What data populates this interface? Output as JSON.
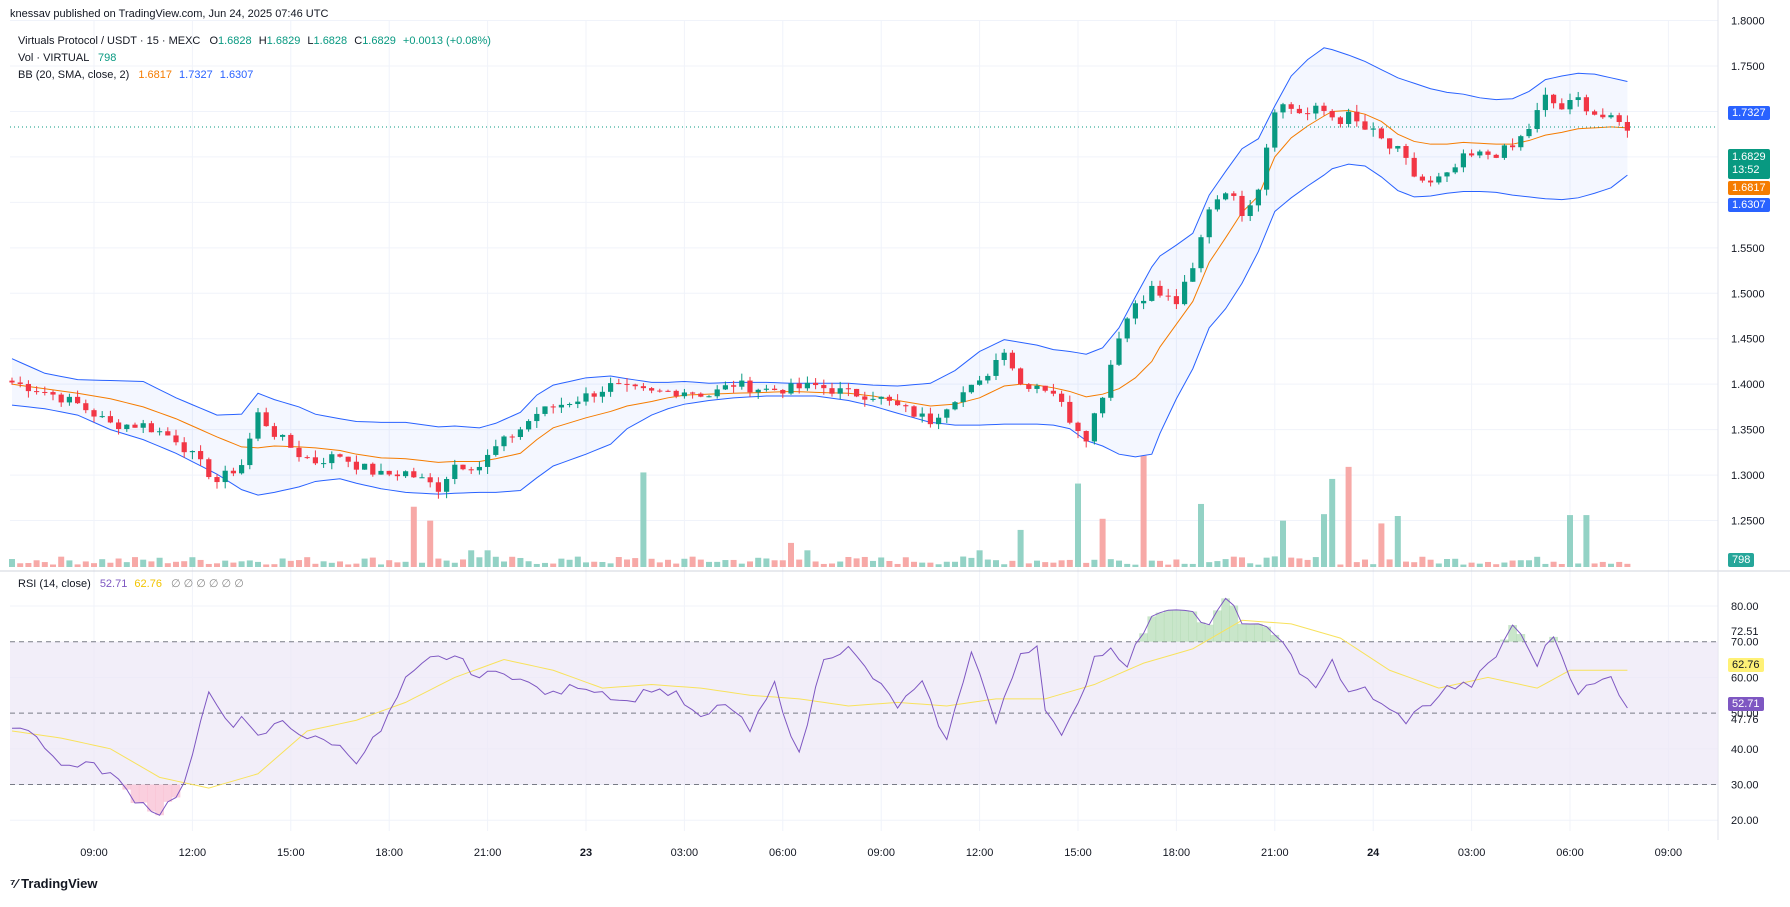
{
  "header": {
    "published": "knessav published on TradingView.com, Jun 24, 2025 07:46 UTC",
    "symbol": "Virtuals Protocol / USDT · 15 · MEXC",
    "ohlc": {
      "o_label": "O",
      "o": "1.6828",
      "h_label": "H",
      "h": "1.6829",
      "l_label": "L",
      "l": "1.6828",
      "c_label": "C",
      "c": "1.6829",
      "change": "+0.0013 (+0.08%)"
    },
    "vol_label": "Vol · VIRTUAL",
    "vol_value": "798",
    "bb_label": "BB (20, SMA, close, 2)",
    "bb_basis": "1.6817",
    "bb_upper": "1.7327",
    "bb_lower": "1.6307",
    "rsi_label": "RSI (14, close)",
    "rsi_value": "52.71",
    "rsi_ma": "62.76",
    "rsi_placeholders": "∅ ∅ ∅ ∅ ∅ ∅"
  },
  "footer": {
    "brand": "TradingView"
  },
  "badges": {
    "upper": "1.7327",
    "price": "1.6829",
    "countdown": "13:52",
    "basis": "1.6817",
    "lower": "1.6307",
    "volume": "798",
    "rsi_ma": "62.76",
    "rsi": "52.71",
    "rsi_upper_level": "72.51",
    "rsi_lower_level": "47.76"
  },
  "colors": {
    "up": "#089981",
    "down": "#f23645",
    "vol_up": "#93d2c5",
    "vol_down": "#f7a9a7",
    "bb_band": "#2962ff",
    "bb_basis": "#f57c00",
    "rsi_line": "#7e57c2",
    "rsi_ma": "#f8e25c",
    "rsi_fill": "#ede7f6"
  },
  "chart_data": [
    {
      "type": "candlestick",
      "title": "Virtuals Protocol / USDT · 15 · MEXC",
      "ylim": [
        1.2,
        1.8
      ],
      "y_ticks": [
        "1.2500",
        "1.3000",
        "1.3500",
        "1.4000",
        "1.4500",
        "1.5000",
        "1.5500",
        "1.6000",
        "1.6500",
        "1.7000",
        "1.7500",
        "1.8000"
      ],
      "x_tick_labels": [
        "09:00",
        "12:00",
        "15:00",
        "18:00",
        "21:00",
        "23",
        "03:00",
        "06:00",
        "09:00",
        "12:00",
        "15:00",
        "18:00",
        "21:00",
        "24",
        "03:00",
        "06:00",
        "09:00"
      ],
      "x_tick_index": [
        10,
        22,
        34,
        46,
        58,
        70,
        82,
        94,
        106,
        118,
        130,
        142,
        154,
        166,
        178,
        190,
        202
      ],
      "close_anchor_index": [
        0,
        4,
        8,
        12,
        16,
        20,
        25,
        28,
        30,
        32,
        35,
        37,
        40,
        42,
        45,
        48,
        52,
        54,
        57,
        59,
        62,
        64,
        66,
        70,
        73,
        75,
        78,
        80,
        82,
        85,
        88,
        92,
        95,
        98,
        102,
        105,
        108,
        112,
        115,
        118,
        121,
        123,
        125,
        127,
        129,
        131,
        133,
        135,
        137,
        139,
        140,
        142,
        144,
        146,
        148,
        150,
        152,
        154,
        156,
        158,
        160,
        161,
        163,
        165,
        167,
        169,
        171,
        173,
        175,
        177,
        179,
        181,
        183,
        185,
        187,
        189,
        191,
        193,
        195,
        197
      ],
      "close_anchor_value": [
        1.402,
        1.392,
        1.378,
        1.356,
        1.355,
        1.34,
        1.293,
        1.312,
        1.367,
        1.346,
        1.323,
        1.315,
        1.322,
        1.311,
        1.3,
        1.303,
        1.286,
        1.312,
        1.31,
        1.33,
        1.351,
        1.368,
        1.375,
        1.387,
        1.398,
        1.394,
        1.39,
        1.392,
        1.393,
        1.388,
        1.4,
        1.394,
        1.395,
        1.398,
        1.39,
        1.388,
        1.375,
        1.36,
        1.386,
        1.4,
        1.44,
        1.4,
        1.4,
        1.392,
        1.362,
        1.343,
        1.39,
        1.455,
        1.49,
        1.505,
        1.498,
        1.49,
        1.525,
        1.595,
        1.615,
        1.59,
        1.62,
        1.708,
        1.704,
        1.697,
        1.7,
        1.695,
        1.692,
        1.68,
        1.667,
        1.653,
        1.63,
        1.618,
        1.628,
        1.648,
        1.652,
        1.654,
        1.66,
        1.682,
        1.715,
        1.703,
        1.713,
        1.698,
        1.69,
        1.683
      ],
      "bb_upper_value": [
        1.428,
        1.412,
        1.405,
        1.404,
        1.403,
        1.385,
        1.366,
        1.367,
        1.39,
        1.383,
        1.375,
        1.367,
        1.362,
        1.359,
        1.358,
        1.358,
        1.353,
        1.354,
        1.352,
        1.357,
        1.369,
        1.388,
        1.399,
        1.407,
        1.409,
        1.406,
        1.402,
        1.402,
        1.403,
        1.401,
        1.402,
        1.402,
        1.401,
        1.401,
        1.401,
        1.399,
        1.398,
        1.401,
        1.415,
        1.436,
        1.449,
        1.446,
        1.443,
        1.438,
        1.436,
        1.433,
        1.44,
        1.462,
        1.496,
        1.529,
        1.541,
        1.553,
        1.566,
        1.608,
        1.634,
        1.659,
        1.67,
        1.706,
        1.739,
        1.757,
        1.77,
        1.768,
        1.762,
        1.755,
        1.746,
        1.737,
        1.731,
        1.725,
        1.721,
        1.719,
        1.715,
        1.713,
        1.714,
        1.722,
        1.735,
        1.739,
        1.742,
        1.741,
        1.737,
        1.733
      ],
      "bb_lower_value": [
        1.377,
        1.373,
        1.366,
        1.35,
        1.339,
        1.324,
        1.301,
        1.284,
        1.278,
        1.281,
        1.287,
        1.293,
        1.296,
        1.291,
        1.285,
        1.281,
        1.279,
        1.28,
        1.281,
        1.281,
        1.283,
        1.297,
        1.31,
        1.323,
        1.334,
        1.351,
        1.366,
        1.373,
        1.378,
        1.382,
        1.385,
        1.387,
        1.387,
        1.387,
        1.382,
        1.376,
        1.368,
        1.358,
        1.355,
        1.355,
        1.356,
        1.356,
        1.356,
        1.355,
        1.351,
        1.338,
        1.332,
        1.323,
        1.32,
        1.323,
        1.346,
        1.384,
        1.417,
        1.462,
        1.483,
        1.511,
        1.546,
        1.59,
        1.605,
        1.618,
        1.63,
        1.637,
        1.642,
        1.64,
        1.628,
        1.613,
        1.606,
        1.607,
        1.61,
        1.612,
        1.612,
        1.611,
        1.608,
        1.606,
        1.604,
        1.603,
        1.605,
        1.61,
        1.616,
        1.63
      ],
      "bb_basis_value": [
        1.4,
        1.395,
        1.39,
        1.384,
        1.375,
        1.362,
        1.342,
        1.331,
        1.33,
        1.332,
        1.331,
        1.33,
        1.327,
        1.323,
        1.319,
        1.318,
        1.314,
        1.315,
        1.315,
        1.318,
        1.324,
        1.339,
        1.352,
        1.363,
        1.37,
        1.376,
        1.381,
        1.385,
        1.388,
        1.389,
        1.39,
        1.391,
        1.392,
        1.391,
        1.39,
        1.387,
        1.382,
        1.376,
        1.378,
        1.385,
        1.398,
        1.4,
        1.399,
        1.396,
        1.392,
        1.386,
        1.389,
        1.395,
        1.407,
        1.425,
        1.441,
        1.466,
        1.491,
        1.534,
        1.561,
        1.589,
        1.607,
        1.65,
        1.671,
        1.684,
        1.695,
        1.7,
        1.701,
        1.697,
        1.689,
        1.675,
        1.667,
        1.664,
        1.664,
        1.666,
        1.665,
        1.664,
        1.664,
        1.668,
        1.674,
        1.677,
        1.681,
        1.682,
        1.683,
        1.682
      ],
      "volume_ylim": [
        0,
        1400
      ],
      "volume_spike_index": [
        49,
        51,
        56,
        58,
        77,
        95,
        97,
        118,
        123,
        130,
        133,
        138,
        145,
        155,
        160,
        161,
        163,
        167,
        169,
        190,
        192
      ],
      "volume_spike_value": [
        650,
        500,
        180,
        180,
        1020,
        260,
        180,
        180,
        400,
        900,
        520,
        1200,
        680,
        500,
        570,
        950,
        1080,
        470,
        550,
        560,
        560
      ],
      "volume_spike_dir": [
        "down",
        "down",
        "up",
        "up",
        "up",
        "down",
        "up",
        "up",
        "up",
        "up",
        "down",
        "down",
        "up",
        "up",
        "up",
        "up",
        "down",
        "down",
        "up",
        "up",
        "up"
      ]
    },
    {
      "type": "line",
      "title": "RSI (14, close)",
      "ylim": [
        15,
        90
      ],
      "y_ticks": [
        "20.00",
        "30.00",
        "40.00",
        "50.00",
        "60.00",
        "70.00",
        "80.00"
      ],
      "levels": [
        70,
        50,
        30
      ],
      "rsi_anchor_index": [
        0,
        3,
        6,
        9,
        12,
        15,
        18,
        21,
        24,
        27,
        28,
        30,
        33,
        36,
        39,
        42,
        45,
        48,
        51,
        54,
        57,
        60,
        63,
        66,
        69,
        72,
        75,
        78,
        81,
        84,
        87,
        90,
        93,
        96,
        99,
        102,
        105,
        108,
        111,
        114,
        117,
        120,
        122,
        123,
        125,
        126,
        128,
        130,
        132,
        134,
        136,
        138,
        140,
        143,
        146,
        148,
        150,
        153,
        155,
        157,
        159,
        161,
        163,
        165,
        167,
        170,
        173,
        175,
        178,
        181,
        183,
        186,
        188,
        189,
        191,
        193,
        195,
        197
      ],
      "rsi_anchor_value": [
        47,
        44,
        35,
        36,
        33,
        26,
        22,
        30,
        55,
        47,
        48,
        43,
        48,
        43,
        42,
        37,
        45,
        59,
        65,
        66,
        60,
        62,
        58,
        55,
        58,
        56,
        53,
        57,
        55,
        48,
        53,
        45,
        58,
        38,
        66,
        68,
        60,
        52,
        58,
        42,
        68,
        47,
        60,
        67,
        69,
        52,
        43,
        52,
        66,
        68,
        64,
        73,
        79,
        80,
        74,
        82,
        76,
        73,
        71,
        60,
        58,
        65,
        55,
        57,
        52,
        48,
        53,
        57,
        58,
        66,
        75,
        64,
        72,
        66,
        56,
        58,
        60,
        52
      ],
      "rsi_ma_anchor_index": [
        0,
        6,
        12,
        18,
        24,
        30,
        36,
        42,
        48,
        54,
        60,
        66,
        72,
        78,
        84,
        90,
        96,
        102,
        108,
        114,
        120,
        126,
        132,
        138,
        144,
        150,
        156,
        162,
        168,
        174,
        180,
        186,
        190,
        194,
        197
      ],
      "rsi_ma_anchor_value": [
        45,
        43,
        40,
        32,
        29,
        33,
        45,
        48,
        53,
        60,
        65,
        62,
        57,
        58,
        57,
        55,
        54,
        52,
        53,
        52,
        54,
        54,
        58,
        64,
        68,
        76,
        75,
        71,
        62,
        57,
        60,
        57,
        62,
        62,
        62
      ]
    }
  ]
}
